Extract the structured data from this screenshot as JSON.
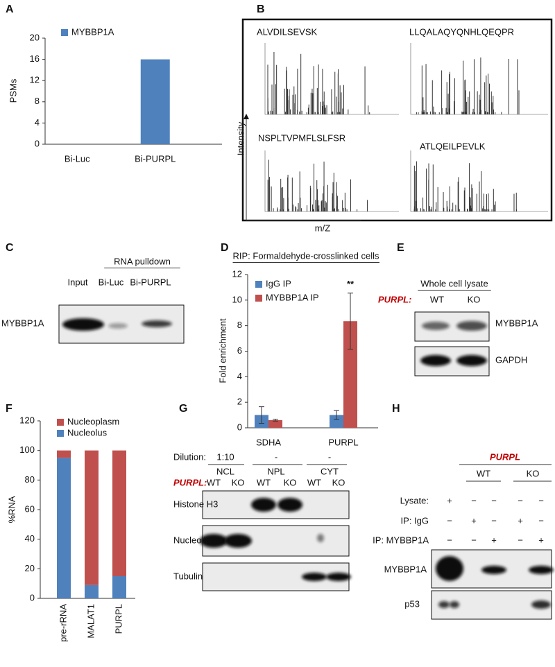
{
  "chart_data": [
    {
      "panel": "A",
      "type": "bar",
      "y_label": "PSMs",
      "categories": [
        "Bi-Luc",
        "Bi-PURPL"
      ],
      "series": [
        {
          "name": "MYBBP1A",
          "color": "#4f81bd",
          "values": [
            0,
            16
          ]
        }
      ],
      "ylim": [
        0,
        20
      ],
      "yticks": [
        0,
        4,
        8,
        12,
        16,
        20
      ],
      "legend": "upper left"
    },
    {
      "panel": "D",
      "type": "bar",
      "title": "RIP: Formaldehyde-crosslinked cells",
      "y_label": "Fold enrichment",
      "categories": [
        "SDHA",
        "PURPL"
      ],
      "series": [
        {
          "name": "IgG IP",
          "color": "#4f81bd",
          "values": [
            1.0,
            1.0
          ],
          "errors": [
            0.65,
            0.35
          ]
        },
        {
          "name": "MYBBP1A IP",
          "color": "#c0504d",
          "values": [
            0.6,
            8.35
          ],
          "errors": [
            0.08,
            2.2
          ]
        }
      ],
      "ylim": [
        0,
        12
      ],
      "yticks": [
        0,
        2,
        4,
        6,
        8,
        10,
        12
      ],
      "legend": "upper left",
      "annotation": "**"
    },
    {
      "panel": "F",
      "type": "stacked_bar",
      "y_label": "%RNA",
      "categories": [
        "pre-rRNA",
        "MALAT1",
        "PURPL"
      ],
      "series": [
        {
          "name": "Nucleolus",
          "color": "#4f81bd",
          "values": [
            95,
            9,
            15
          ]
        },
        {
          "name": "Nucleoplasm",
          "color": "#c0504d",
          "values": [
            5,
            91,
            85
          ]
        }
      ],
      "ylim": [
        0,
        120
      ],
      "yticks": [
        0,
        20,
        40,
        60,
        80,
        100,
        120
      ],
      "legend": "upper left"
    }
  ],
  "panels": {
    "B": {
      "letter": "B",
      "peptides": [
        "ALVDILSEVSK",
        "LLQALAQYQNHLQEQPR",
        "NSPLTVPMFLSLFSR",
        "ATLQEILPEVLK"
      ],
      "y_axis": "Intensity",
      "x_axis": "m/Z"
    },
    "C": {
      "letter": "C",
      "header": "RNA pulldown",
      "lanes": [
        "Input",
        "Bi-Luc",
        "Bi-PURPL"
      ],
      "rows": [
        "MYBBP1A"
      ]
    },
    "E": {
      "letter": "E",
      "header": "Whole cell lysate",
      "genotype_label": "PURPL:",
      "lanes": [
        "WT",
        "KO"
      ],
      "rows": [
        "MYBBP1A",
        "GAPDH"
      ]
    },
    "G": {
      "letter": "G",
      "dilution_label": "Dilution:",
      "dilutions": [
        "1:10",
        "-",
        "-"
      ],
      "fractions": [
        "NCL",
        "NPL",
        "CYT"
      ],
      "genotype_label": "PURPL:",
      "lanes": [
        "WT",
        "KO",
        "WT",
        "KO",
        "WT",
        "KO"
      ],
      "rows": [
        "Histone H3",
        "Nucleolin",
        "Tubulin"
      ]
    },
    "H": {
      "letter": "H",
      "header": "PURPL",
      "groups": [
        "WT",
        "KO"
      ],
      "conditions": [
        {
          "label": "Lysate:",
          "signs": [
            "+",
            "−",
            "−",
            "−",
            "−"
          ]
        },
        {
          "label": "IP: IgG",
          "signs": [
            "−",
            "+",
            "−",
            "+",
            "−"
          ]
        },
        {
          "label": "IP: MYBBP1A",
          "signs": [
            "−",
            "−",
            "+",
            "−",
            "+"
          ]
        }
      ],
      "rows": [
        "MYBBP1A",
        "p53"
      ]
    }
  }
}
